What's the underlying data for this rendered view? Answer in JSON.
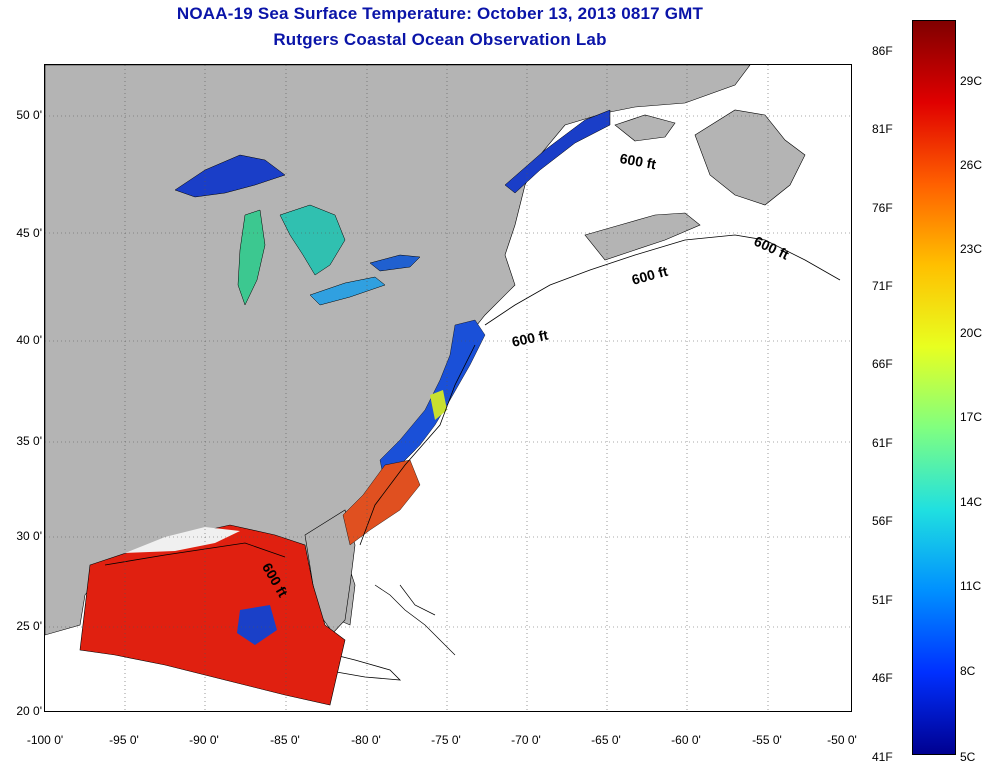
{
  "title": {
    "line1": "NOAA-19 Sea Surface Temperature:  October 13, 2013 0817 GMT",
    "line2": "Rutgers Coastal Ocean Observation Lab"
  },
  "axes": {
    "latitude_labels": [
      "50 0'",
      "45 0'",
      "40 0'",
      "35 0'",
      "30 0'",
      "25 0'",
      "20 0'"
    ],
    "longitude_labels": [
      "-100 0'",
      "-95 0'",
      "-90 0'",
      "-85 0'",
      "-80 0'",
      "-75 0'",
      "-70 0'",
      "-65 0'",
      "-60 0'",
      "-55 0'",
      "-50 0'"
    ],
    "grid": "dotted"
  },
  "colorbar": {
    "fahrenheit_labels": [
      "86F",
      "81F",
      "76F",
      "71F",
      "66F",
      "61F",
      "56F",
      "51F",
      "46F",
      "41F"
    ],
    "celsius_labels": [
      "29C",
      "26C",
      "23C",
      "20C",
      "17C",
      "14C",
      "11C",
      "8C",
      "5C"
    ],
    "colormap": "jet"
  },
  "contours": {
    "labels": [
      "600 ft",
      "600 ft",
      "600 ft",
      "600 ft",
      "600 ft"
    ]
  },
  "colors": {
    "land": "#b4b4b4",
    "ocean_no_data": "#ffffff",
    "title": "#0a14a8",
    "warm_sst": "#e02010",
    "cold_sst": "#1030c8"
  }
}
